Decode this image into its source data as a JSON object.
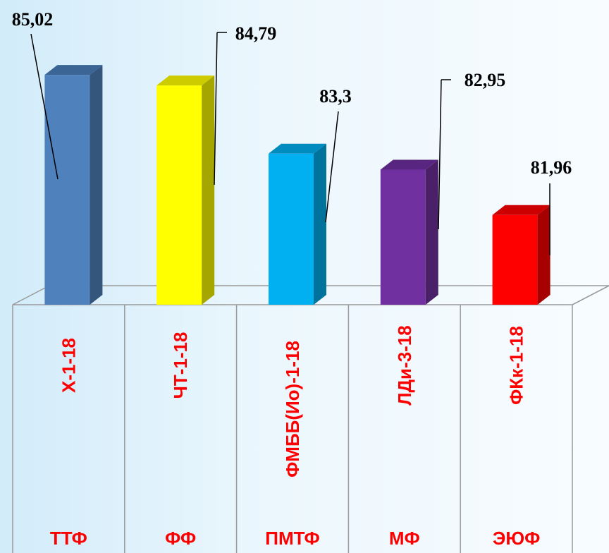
{
  "chart_data": {
    "type": "bar",
    "categories": [
      "Х-1-18",
      "ЧТ-1-18",
      "ФМББ(Ио)-1-18",
      "ЛДи-3-18",
      "ФКк-1-18"
    ],
    "groups": [
      "ТТФ",
      "ФФ",
      "ПМТФ",
      "МФ",
      "ЭЮФ"
    ],
    "values": [
      85.02,
      84.79,
      83.3,
      82.95,
      81.96
    ],
    "value_labels": [
      "85,02",
      "84,79",
      "83,3",
      "82,95",
      "81,96"
    ],
    "colors": [
      "#4f81bd",
      "#ffff00",
      "#00b0f0",
      "#7030a0",
      "#ff0000"
    ],
    "side_colors": [
      "#34567d",
      "#a6a600",
      "#00739c",
      "#4a2069",
      "#a60000"
    ],
    "top_colors": [
      "#3b6594",
      "#cccc00",
      "#008cbf",
      "#582680",
      "#cc0000"
    ],
    "ylim": [
      80,
      85.5
    ],
    "three_d": true,
    "grid": false,
    "legend": "none",
    "category_label_color": "#ff0000"
  }
}
